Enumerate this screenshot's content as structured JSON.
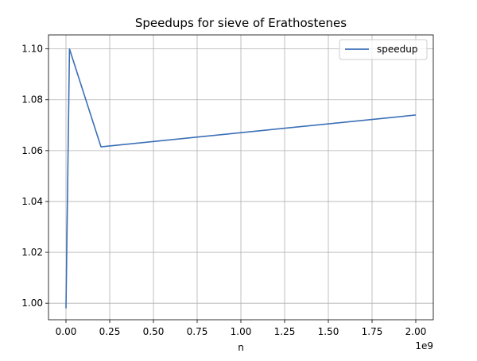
{
  "chart_data": {
    "type": "line",
    "title": "Speedups for sieve of Erathostenes",
    "xlabel": "n",
    "ylabel": "",
    "x_offset_text": "1e9",
    "xlim": [
      -0.1,
      2.1
    ],
    "ylim": [
      0.9935,
      1.1055
    ],
    "xticks": [
      0.0,
      0.25,
      0.5,
      0.75,
      1.0,
      1.25,
      1.5,
      1.75,
      2.0
    ],
    "xtick_labels": [
      "0.00",
      "0.25",
      "0.50",
      "0.75",
      "1.00",
      "1.25",
      "1.50",
      "1.75",
      "2.00"
    ],
    "yticks": [
      1.0,
      1.02,
      1.04,
      1.06,
      1.08,
      1.1
    ],
    "ytick_labels": [
      "1.00",
      "1.02",
      "1.04",
      "1.06",
      "1.08",
      "1.10"
    ],
    "grid": true,
    "legend_position": "top-right",
    "series": [
      {
        "name": "speedup",
        "color": "#3c6fb6",
        "x": [
          0.0,
          0.02,
          0.2,
          2.0
        ],
        "y": [
          0.998,
          1.1,
          1.0615,
          1.074
        ]
      }
    ]
  }
}
